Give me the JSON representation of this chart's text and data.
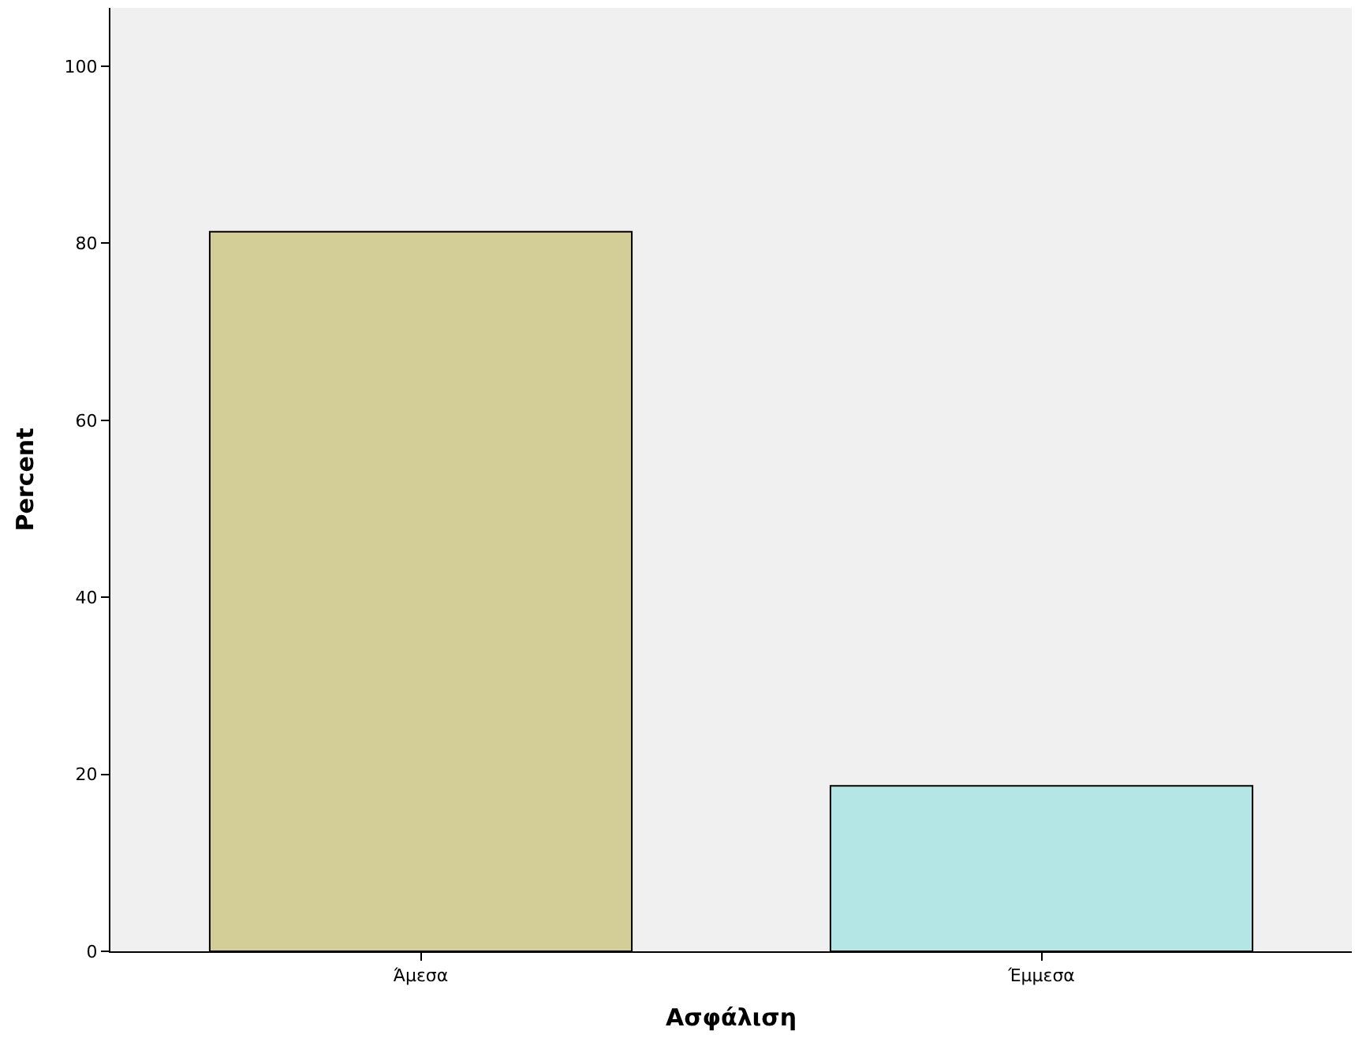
{
  "chart_data": {
    "type": "bar",
    "xlabel": "Ασφάλιση",
    "ylabel": "Percent",
    "categories": [
      "Άμεσα",
      "Έμμεσα"
    ],
    "values": [
      81.3,
      18.7
    ],
    "colors": [
      "#d3ce97",
      "#b4e6e6"
    ],
    "ylim": [
      0,
      106.6
    ],
    "yticks": [
      0,
      20,
      40,
      60,
      80,
      100
    ],
    "grid": false,
    "legend": false
  }
}
